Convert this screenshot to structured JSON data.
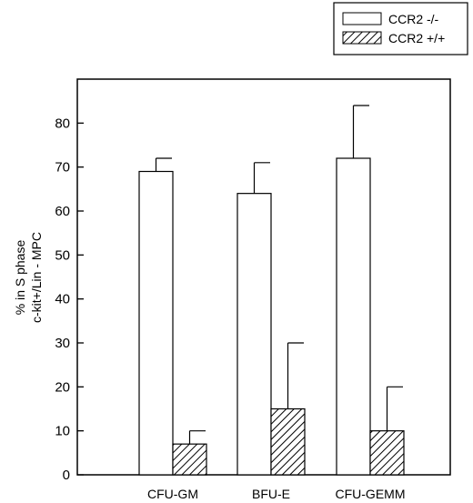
{
  "chart_data": {
    "type": "bar",
    "title": "",
    "xlabel": "",
    "ylabel_lines": [
      "% in S phase",
      "c-kit+/Lin - MPC"
    ],
    "ylim": [
      0,
      90
    ],
    "yticks": [
      0,
      10,
      20,
      30,
      40,
      50,
      60,
      70,
      80
    ],
    "categories": [
      "CFU-GM",
      "BFU-E",
      "CFU-GEMM"
    ],
    "series": [
      {
        "name": "CCR2 -/-",
        "pattern": "open",
        "values": [
          69,
          64,
          72
        ],
        "errors": [
          3,
          7,
          12
        ]
      },
      {
        "name": "CCR2 +/+",
        "pattern": "hatched",
        "values": [
          7,
          15,
          10
        ],
        "errors": [
          3,
          15,
          10
        ]
      }
    ],
    "grid": false,
    "legend_position": "top-right, outside plot"
  }
}
